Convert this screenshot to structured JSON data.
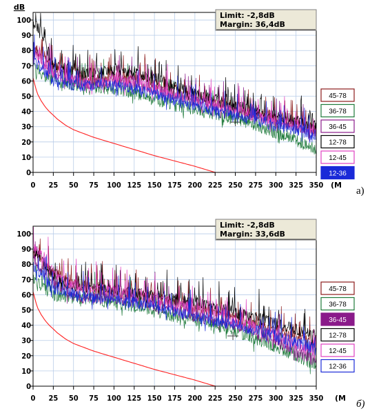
{
  "chart_data": [
    {
      "type": "line",
      "panel_label": "а)",
      "ylabel": "dB",
      "xlabel_unit": "(MHz",
      "x_ticks": [
        "0",
        "25",
        "50",
        "75",
        "100",
        "125",
        "150",
        "175",
        "200",
        "225",
        "250",
        "275",
        "300",
        "325",
        "350"
      ],
      "y_ticks": [
        "0",
        "10",
        "20",
        "30",
        "40",
        "50",
        "60",
        "70",
        "80",
        "90",
        "100"
      ],
      "xlim": [
        0,
        350
      ],
      "ylim": [
        0,
        105
      ],
      "grid": true,
      "info_box": {
        "limit": "Limit:  -2,8dB",
        "margin": "Margin:  36,4dB"
      },
      "legend": [
        {
          "label": "45-78",
          "color": "#8b1a1a",
          "selected": false
        },
        {
          "label": "36-78",
          "color": "#1e7a3a",
          "selected": false
        },
        {
          "label": "36-45",
          "color": "#8a1a8a",
          "selected": false
        },
        {
          "label": "12-78",
          "color": "#000000",
          "selected": false
        },
        {
          "label": "12-45",
          "color": "#e040c0",
          "selected": false
        },
        {
          "label": "12-36",
          "color": "#1a2ad8",
          "selected": true
        }
      ],
      "limit_curve": {
        "color": "#ff2020",
        "x": [
          0,
          5,
          10,
          15,
          20,
          30,
          40,
          50,
          60,
          75,
          100,
          125,
          150,
          175,
          200,
          225,
          250
        ],
        "y": [
          62,
          52,
          47,
          43,
          40,
          35,
          31,
          28,
          26,
          23,
          19,
          15,
          11,
          7.5,
          4,
          0,
          0
        ]
      },
      "series": [
        {
          "name": "45-78",
          "color": "#8b1a1a",
          "x": [
            0,
            10,
            25,
            50,
            75,
            100,
            125,
            150,
            175,
            200,
            225,
            250,
            275,
            300,
            325,
            350
          ],
          "y": [
            80,
            78,
            70,
            65,
            60,
            62,
            62,
            58,
            54,
            50,
            46,
            43,
            38,
            35,
            32,
            28
          ]
        },
        {
          "name": "36-78",
          "color": "#1e7a3a",
          "x": [
            0,
            10,
            25,
            50,
            75,
            100,
            125,
            150,
            175,
            200,
            225,
            250,
            275,
            300,
            325,
            350
          ],
          "y": [
            70,
            65,
            60,
            57,
            56,
            55,
            52,
            48,
            44,
            41,
            38,
            35,
            31,
            26,
            21,
            15
          ]
        },
        {
          "name": "36-45",
          "color": "#8a1a8a",
          "x": [
            0,
            10,
            25,
            50,
            75,
            100,
            125,
            150,
            175,
            200,
            225,
            250,
            275,
            300,
            325,
            350
          ],
          "y": [
            82,
            76,
            66,
            60,
            58,
            60,
            60,
            55,
            51,
            47,
            44,
            41,
            37,
            34,
            31,
            27
          ]
        },
        {
          "name": "12-78",
          "color": "#000000",
          "x": [
            0,
            10,
            25,
            50,
            75,
            100,
            125,
            150,
            175,
            200,
            225,
            250,
            275,
            300,
            325,
            350
          ],
          "y": [
            98,
            92,
            70,
            66,
            65,
            67,
            66,
            62,
            56,
            52,
            48,
            44,
            40,
            37,
            34,
            30
          ]
        },
        {
          "name": "12-45",
          "color": "#e040c0",
          "x": [
            0,
            10,
            25,
            50,
            75,
            100,
            125,
            150,
            175,
            200,
            225,
            250,
            275,
            300,
            325,
            350
          ],
          "y": [
            78,
            72,
            64,
            60,
            58,
            60,
            59,
            55,
            51,
            47,
            44,
            41,
            37,
            34,
            31,
            26
          ]
        },
        {
          "name": "12-36",
          "color": "#1a2ad8",
          "x": [
            0,
            10,
            25,
            50,
            75,
            100,
            125,
            150,
            175,
            200,
            225,
            250,
            275,
            300,
            325,
            350
          ],
          "y": [
            74,
            68,
            60,
            57,
            57,
            57,
            55,
            51,
            47,
            44,
            40,
            37,
            34,
            31,
            28,
            24
          ]
        }
      ]
    },
    {
      "type": "line",
      "panel_label": "б)",
      "ylabel": "",
      "xlabel_unit": "(MHz",
      "x_ticks": [
        "0",
        "25",
        "50",
        "75",
        "100",
        "125",
        "150",
        "175",
        "200",
        "225",
        "250",
        "275",
        "300",
        "325",
        "350"
      ],
      "y_ticks": [
        "0",
        "10",
        "20",
        "30",
        "40",
        "50",
        "60",
        "70",
        "80",
        "90",
        "100"
      ],
      "xlim": [
        0,
        350
      ],
      "ylim": [
        0,
        105
      ],
      "grid": true,
      "info_box": {
        "limit": "Limit:  -2,8dB",
        "margin": "Margin:  33,6dB"
      },
      "legend": [
        {
          "label": "45-78",
          "color": "#8b1a1a",
          "selected": false
        },
        {
          "label": "36-78",
          "color": "#1e7a3a",
          "selected": false
        },
        {
          "label": "36-45",
          "color": "#8a1a8a",
          "selected": true
        },
        {
          "label": "12-78",
          "color": "#000000",
          "selected": false
        },
        {
          "label": "12-45",
          "color": "#e040c0",
          "selected": false
        },
        {
          "label": "12-36",
          "color": "#1a2ad8",
          "selected": false
        }
      ],
      "limit_curve": {
        "color": "#ff2020",
        "x": [
          0,
          5,
          10,
          15,
          20,
          30,
          40,
          50,
          60,
          75,
          100,
          125,
          150,
          175,
          200,
          225,
          250
        ],
        "y": [
          62,
          52,
          47,
          43,
          40,
          35,
          31,
          28,
          26,
          23,
          19,
          15,
          11,
          7.5,
          4,
          0,
          0
        ]
      },
      "series": [
        {
          "name": "45-78",
          "color": "#8b1a1a",
          "x": [
            0,
            10,
            25,
            50,
            75,
            100,
            125,
            150,
            175,
            200,
            225,
            250,
            275,
            300,
            325,
            350
          ],
          "y": [
            88,
            82,
            74,
            68,
            64,
            62,
            60,
            58,
            55,
            52,
            48,
            44,
            40,
            36,
            32,
            28
          ]
        },
        {
          "name": "36-78",
          "color": "#1e7a3a",
          "x": [
            0,
            10,
            25,
            50,
            75,
            100,
            125,
            150,
            175,
            200,
            225,
            250,
            275,
            300,
            325,
            350
          ],
          "y": [
            72,
            66,
            60,
            58,
            57,
            55,
            52,
            49,
            46,
            43,
            40,
            36,
            31,
            26,
            20,
            14
          ]
        },
        {
          "name": "36-45",
          "color": "#8a1a8a",
          "x": [
            0,
            10,
            25,
            50,
            75,
            100,
            125,
            150,
            175,
            200,
            225,
            250,
            275,
            300,
            325,
            350
          ],
          "y": [
            84,
            78,
            68,
            60,
            58,
            58,
            56,
            53,
            50,
            46,
            43,
            40,
            35,
            29,
            23,
            16
          ]
        },
        {
          "name": "12-78",
          "color": "#000000",
          "x": [
            0,
            10,
            25,
            50,
            75,
            100,
            125,
            150,
            175,
            200,
            225,
            250,
            275,
            300,
            325,
            350
          ],
          "y": [
            90,
            84,
            72,
            66,
            64,
            63,
            61,
            59,
            57,
            55,
            52,
            48,
            45,
            41,
            37,
            33
          ]
        },
        {
          "name": "12-45",
          "color": "#e040c0",
          "x": [
            0,
            10,
            25,
            50,
            75,
            100,
            125,
            150,
            175,
            200,
            225,
            250,
            275,
            300,
            325,
            350
          ],
          "y": [
            92,
            86,
            74,
            66,
            64,
            62,
            60,
            57,
            54,
            50,
            46,
            42,
            38,
            33,
            27,
            21
          ]
        },
        {
          "name": "12-36",
          "color": "#1a2ad8",
          "x": [
            0,
            10,
            25,
            50,
            75,
            100,
            125,
            150,
            175,
            200,
            225,
            250,
            275,
            300,
            325,
            350
          ],
          "y": [
            80,
            74,
            64,
            60,
            58,
            57,
            55,
            52,
            49,
            46,
            43,
            40,
            37,
            33,
            29,
            24
          ]
        }
      ]
    }
  ]
}
